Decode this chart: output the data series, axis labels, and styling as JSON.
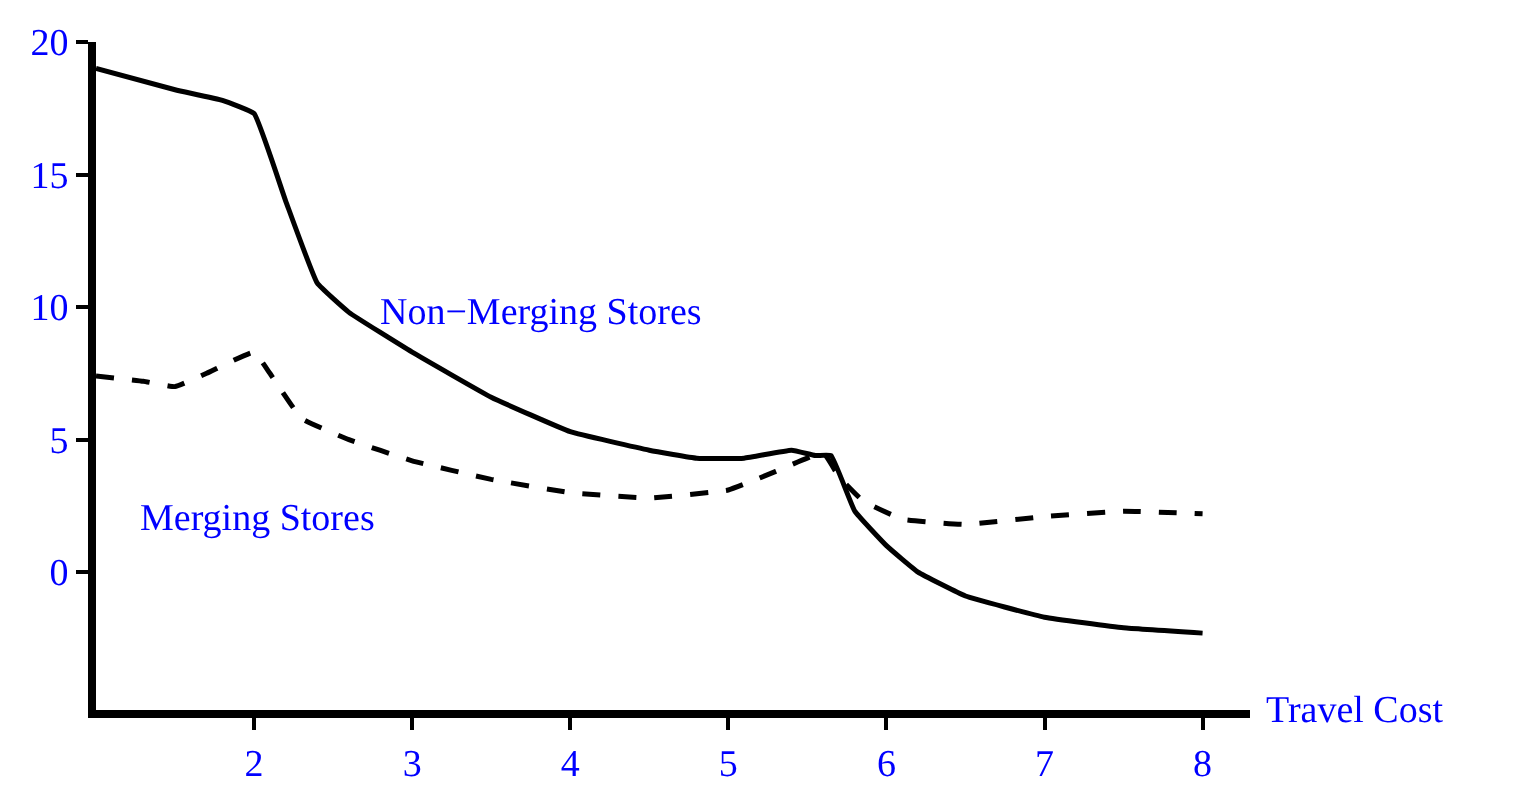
{
  "chart_data": {
    "type": "line",
    "xlabel": "Travel Cost",
    "x": [
      1,
      1.5,
      1.8,
      2,
      2.2,
      2.4,
      2.6,
      3,
      3.5,
      4,
      4.5,
      4.8,
      5.1,
      5.4,
      5.55,
      5.65,
      5.8,
      6,
      6.2,
      6.5,
      7,
      7.5,
      8
    ],
    "series": [
      {
        "name": "Non−Merging Stores",
        "color": "#000000",
        "line_style": "solid",
        "values": [
          19,
          18.2,
          17.8,
          17.3,
          14,
          10.9,
          9.8,
          8.3,
          6.6,
          5.3,
          4.6,
          4.3,
          4.3,
          4.6,
          4.4,
          4.4,
          2.3,
          1,
          0,
          -0.9,
          -1.7,
          -2.1,
          -2.3
        ]
      },
      {
        "name": "Merging Stores",
        "color": "#000000",
        "line_style": "dashed",
        "x": [
          1,
          1.3,
          1.5,
          1.7,
          2,
          2.1,
          2.3,
          2.6,
          3,
          3.5,
          4,
          4.5,
          5,
          5.3,
          5.6,
          5.7,
          5.85,
          6.1,
          6.5,
          7,
          7.5,
          8
        ],
        "values": [
          7.4,
          7.2,
          7.0,
          7.5,
          8.3,
          7.5,
          5.8,
          5,
          4.2,
          3.5,
          3.0,
          2.8,
          3.1,
          3.8,
          4.5,
          3.6,
          2.7,
          2,
          1.8,
          2.1,
          2.3,
          2.2
        ]
      }
    ],
    "xlim": [
      1,
      8.3
    ],
    "ylim": [
      -5.2,
      20
    ],
    "xticks": [
      2,
      3,
      4,
      5,
      6,
      7,
      8
    ],
    "yticks": [
      0,
      5,
      10,
      15,
      20
    ],
    "legend": false,
    "marker": "none"
  }
}
